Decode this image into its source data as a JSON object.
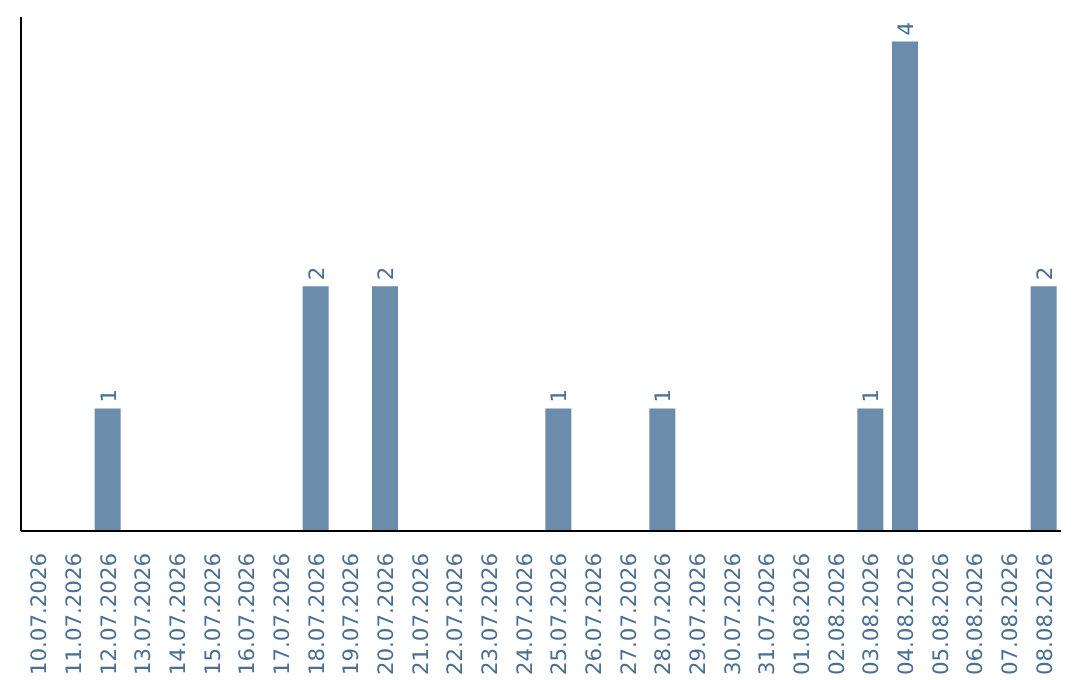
{
  "chart_data": {
    "type": "bar",
    "categories": [
      "10.07.2026",
      "11.07.2026",
      "12.07.2026",
      "13.07.2026",
      "14.07.2026",
      "15.07.2026",
      "16.07.2026",
      "17.07.2026",
      "18.07.2026",
      "19.07.2026",
      "20.07.2026",
      "21.07.2026",
      "22.07.2026",
      "23.07.2026",
      "24.07.2026",
      "25.07.2026",
      "26.07.2026",
      "27.07.2026",
      "28.07.2026",
      "29.07.2026",
      "30.07.2026",
      "31.07.2026",
      "01.08.2026",
      "02.08.2026",
      "03.08.2026",
      "04.08.2026",
      "05.08.2026",
      "06.08.2026",
      "07.08.2026",
      "08.08.2026"
    ],
    "values": [
      0,
      0,
      1,
      0,
      0,
      0,
      0,
      0,
      2,
      0,
      2,
      0,
      0,
      0,
      0,
      1,
      0,
      0,
      1,
      0,
      0,
      0,
      0,
      0,
      1,
      4,
      0,
      0,
      0,
      2
    ],
    "value_labels": [
      null,
      null,
      "1",
      null,
      null,
      null,
      null,
      null,
      "2",
      null,
      "2",
      null,
      null,
      null,
      null,
      "1",
      null,
      null,
      "1",
      null,
      null,
      null,
      null,
      null,
      "1",
      "4",
      null,
      null,
      null,
      "2"
    ],
    "color": "#6b8cab",
    "ylim": [
      0,
      4.2
    ],
    "grid": false,
    "tick_labels": "x"
  }
}
